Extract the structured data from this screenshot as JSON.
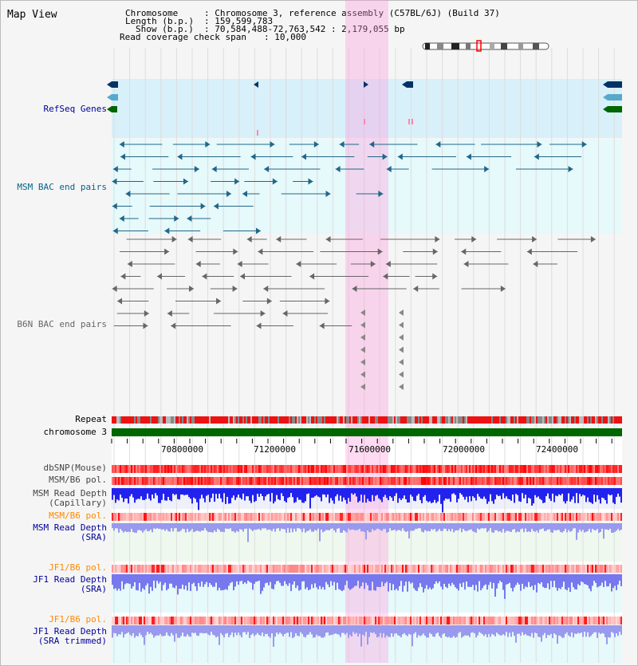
{
  "view": {
    "title": "Map View",
    "header": {
      "chromosome_key": "Chromosome",
      "chromosome_val": ": Chromosome 3, reference assembly (C57BL/6J) (Build 37)",
      "length_key": "Length (b.p.)",
      "length_val": ": 159,599,783",
      "show_key": "Show (b.p.)",
      "show_val": ": 70,584,488-72,763,542 : 2,179,055 bp",
      "coverage_key": "Read coverage check span",
      "coverage_val": ": 10,000"
    }
  },
  "tracks": {
    "refseq": {
      "label": "RefSeq Genes",
      "color": "#000099"
    },
    "msm_bac": {
      "label": "MSM BAC end pairs",
      "color": "#006688"
    },
    "b6n_bac": {
      "label": "B6N BAC end pairs",
      "color": "#666666"
    },
    "repeat": {
      "label": "Repeat"
    },
    "chromosome": {
      "label": "chromosome 3"
    },
    "dbsnp": {
      "label": "dbSNP(Mouse)"
    },
    "msm_b6_pol_1": {
      "label": "MSM/B6 pol."
    },
    "msm_depth_cap": {
      "label": "MSM Read Depth",
      "label2": "(Capillary)"
    },
    "msm_b6_pol_2": {
      "label": "MSM/B6 pol.",
      "color": "#ff8800"
    },
    "msm_depth_sra": {
      "label": "MSM Read Depth",
      "label2": "(SRA)",
      "color": "#000099"
    },
    "jf1_b6_pol_1": {
      "label": "JF1/B6 pol.",
      "color": "#ff8800"
    },
    "jf1_depth_sra": {
      "label": "JF1 Read Depth",
      "label2": "(SRA)",
      "color": "#000099"
    },
    "jf1_b6_pol_2": {
      "label": "JF1/B6 pol.",
      "color": "#ff8800"
    },
    "jf1_depth_trim": {
      "label": "JF1 Read Depth",
      "label2": "(SRA trimmed)",
      "color": "#000099"
    }
  },
  "axis": {
    "ticks": [
      "70800000",
      "71200000",
      "71600000",
      "72000000",
      "72400000"
    ]
  }
}
